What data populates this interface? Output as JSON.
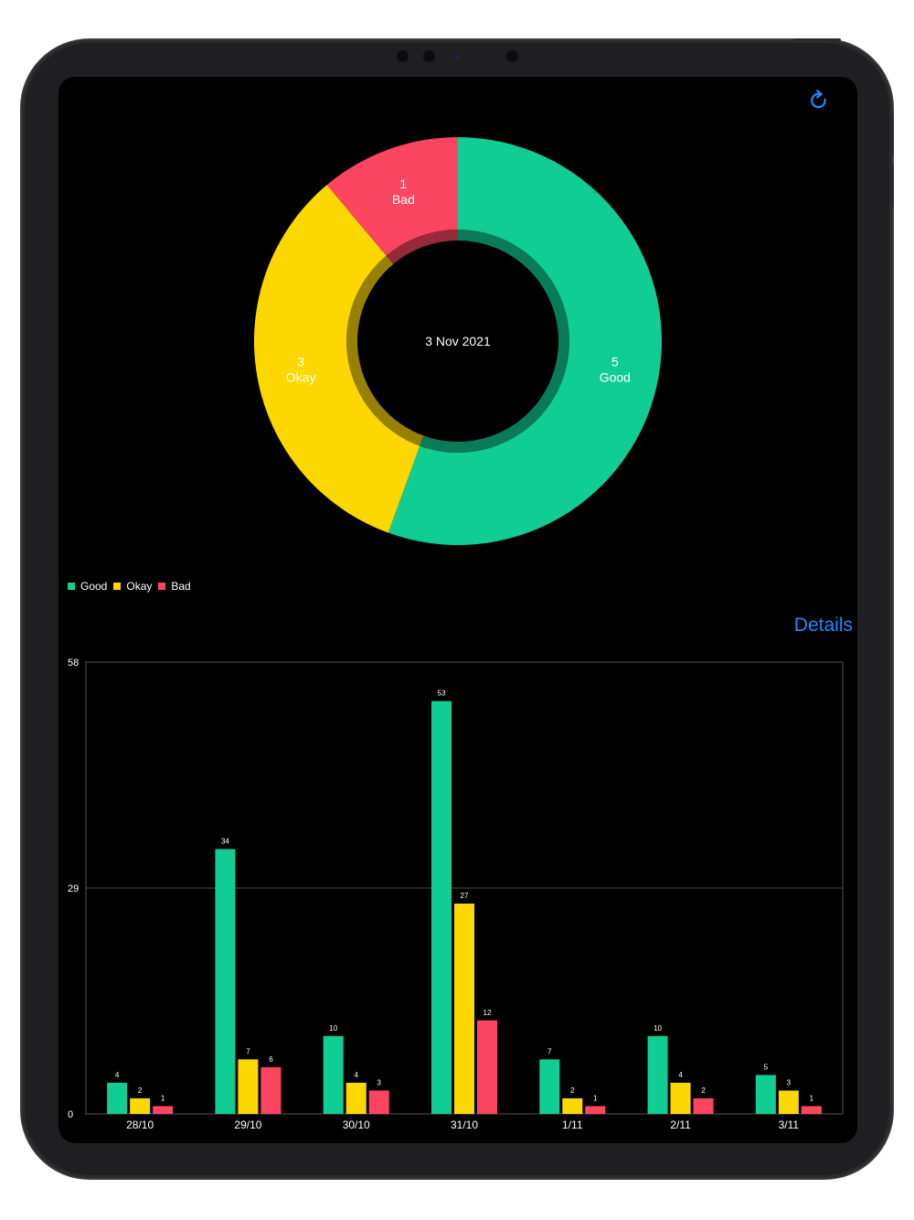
{
  "toolbar": {
    "refresh_icon": "refresh-icon"
  },
  "donut": {
    "center_label": "3 Nov 2021",
    "segments": [
      {
        "label": "Good",
        "value": 5,
        "color": "#10CD94"
      },
      {
        "label": "Okay",
        "value": 3,
        "color": "#FDD700"
      },
      {
        "label": "Bad",
        "value": 1,
        "color": "#FC4560"
      }
    ]
  },
  "legend": {
    "items": [
      {
        "label": "Good",
        "color": "#10CD94"
      },
      {
        "label": "Okay",
        "color": "#FDD700"
      },
      {
        "label": "Bad",
        "color": "#FC4560"
      }
    ]
  },
  "details_label": "Details",
  "chart_data": [
    {
      "type": "pie",
      "donut": true,
      "center_text": "3 Nov 2021",
      "slices": [
        {
          "label": "Good",
          "value": 5
        },
        {
          "label": "Okay",
          "value": 3
        },
        {
          "label": "Bad",
          "value": 1
        }
      ],
      "legend_position": "bottom-left"
    },
    {
      "type": "bar",
      "categories": [
        "28/10",
        "29/10",
        "30/10",
        "31/10",
        "1/11",
        "2/11",
        "3/11"
      ],
      "series": [
        {
          "name": "Good",
          "values": [
            4,
            34,
            10,
            53,
            7,
            10,
            5
          ],
          "color": "#10CD94"
        },
        {
          "name": "Okay",
          "values": [
            2,
            7,
            4,
            27,
            2,
            4,
            3
          ],
          "color": "#FDD700"
        },
        {
          "name": "Bad",
          "values": [
            1,
            6,
            3,
            12,
            1,
            2,
            1
          ],
          "color": "#FC4560"
        }
      ],
      "yticks": [
        0,
        29,
        58
      ],
      "ylim": [
        0,
        58
      ],
      "grid": true,
      "data_labels": true
    }
  ]
}
